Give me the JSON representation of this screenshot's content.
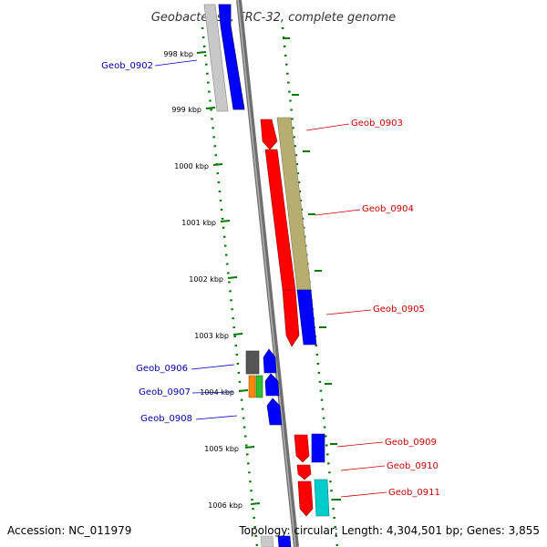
{
  "title": "Geobacter sp. FRC-32, complete genome",
  "footer": {
    "accession": "Accession: NC_011979",
    "topology": "Topology: circular; Length: 4,304,501 bp; Genes: 3,855"
  },
  "ticks": [
    {
      "label": "998 kbp",
      "kbp": 998
    },
    {
      "label": "999 kbp",
      "kbp": 999
    },
    {
      "label": "1000 kbp",
      "kbp": 1000
    },
    {
      "label": "1001 kbp",
      "kbp": 1001
    },
    {
      "label": "1002 kbp",
      "kbp": 1002
    },
    {
      "label": "1003 kbp",
      "kbp": 1003
    },
    {
      "label": "1004 kbp",
      "kbp": 1004
    },
    {
      "label": "1005 kbp",
      "kbp": 1005
    },
    {
      "label": "1006 kbp",
      "kbp": 1006
    }
  ],
  "genes": [
    {
      "name": "Geob_0902",
      "strand": "minus",
      "color": "#0000cc"
    },
    {
      "name": "Geob_0903",
      "strand": "plus",
      "color": "#cc0000"
    },
    {
      "name": "Geob_0904",
      "strand": "plus",
      "color": "#cc0000"
    },
    {
      "name": "Geob_0905",
      "strand": "plus",
      "color": "#cc0000"
    },
    {
      "name": "Geob_0906",
      "strand": "minus",
      "color": "#0000cc"
    },
    {
      "name": "Geob_0907",
      "strand": "minus",
      "color": "#0000cc"
    },
    {
      "name": "Geob_0908",
      "strand": "minus",
      "color": "#0000cc"
    },
    {
      "name": "Geob_0909",
      "strand": "plus",
      "color": "#cc0000"
    },
    {
      "name": "Geob_0910",
      "strand": "plus",
      "color": "#cc0000"
    },
    {
      "name": "Geob_0911",
      "strand": "plus",
      "color": "#cc0000"
    }
  ],
  "colors": {
    "tick_green": "#007700",
    "backbone": "#888888",
    "cds_red": "#ff0000",
    "cds_blue": "#0000ff",
    "annot_khaki": "#b5ad72",
    "annot_gray": "#c0c0c0",
    "annot_cyan": "#00cccc",
    "annot_orange": "#ff8800",
    "annot_green": "#33bb33",
    "annot_dark": "#555555"
  }
}
